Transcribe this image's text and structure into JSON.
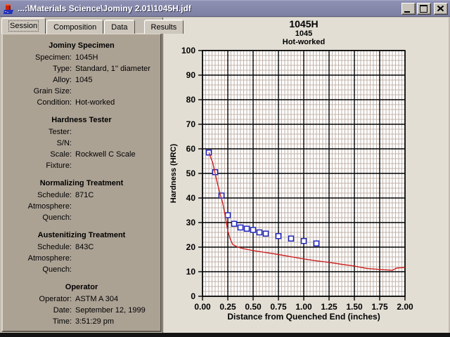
{
  "window": {
    "title": "...:\\Materials Science\\Jominy 2.01\\1045H.jdf"
  },
  "colors": {
    "titlebar": "#8789ad",
    "panel_bg": "#aca294",
    "chart_bg": "#e2ded4",
    "minor_grid": "#c0b2a8",
    "major_grid": "#000000",
    "curve_red": "#cc2020",
    "point_blue": "#2228bb"
  },
  "icons": {
    "app_icon": "furnace-cube-icon",
    "minimize": "minimize-icon",
    "maximize": "maximize-icon",
    "close": "close-icon"
  },
  "tabs": [
    {
      "label": "Session",
      "active": true
    },
    {
      "label": "Composition",
      "active": false
    },
    {
      "label": "Data",
      "active": false
    },
    {
      "label": "Results",
      "active": false
    }
  ],
  "panel": {
    "sections": [
      {
        "heading": "Jominy Specimen",
        "rows": [
          {
            "label": "Specimen:",
            "value": "1045H"
          },
          {
            "label": "Type:",
            "value": "Standard, 1'' diameter"
          },
          {
            "label": "Alloy:",
            "value": "1045"
          },
          {
            "label": "Grain Size:",
            "value": ""
          },
          {
            "label": "Condition:",
            "value": "Hot-worked"
          }
        ]
      },
      {
        "heading": "Hardness Tester",
        "rows": [
          {
            "label": "Tester:",
            "value": ""
          },
          {
            "label": "S/N:",
            "value": ""
          },
          {
            "label": "Scale:",
            "value": "Rockwell C Scale"
          },
          {
            "label": "Fixture:",
            "value": ""
          }
        ]
      },
      {
        "heading": "Normalizing Treatment",
        "rows": [
          {
            "label": "Schedule:",
            "value": "871C"
          },
          {
            "label": "Atmosphere:",
            "value": ""
          },
          {
            "label": "Quench:",
            "value": ""
          }
        ]
      },
      {
        "heading": "Austenitizing Treatment",
        "rows": [
          {
            "label": "Schedule:",
            "value": "843C"
          },
          {
            "label": "Atmosphere:",
            "value": ""
          },
          {
            "label": "Quench:",
            "value": ""
          }
        ]
      },
      {
        "heading": "Operator",
        "rows": [
          {
            "label": "Operator:",
            "value": "ASTM A 304"
          },
          {
            "label": "Date:",
            "value": "September 12, 1999"
          },
          {
            "label": "Time:",
            "value": "3:51:29 pm"
          }
        ]
      }
    ]
  },
  "chart_data": {
    "type": "scatter",
    "title": "1045H",
    "subtitle": "1045",
    "subtitle2": "Hot-worked",
    "xlabel": "Distance from Quenched End (inches)",
    "ylabel": "Hardness (HRC)",
    "xlim": [
      0,
      2
    ],
    "ylim": [
      0,
      100
    ],
    "x_major_step": 0.25,
    "x_minor_step": 0.03125,
    "y_major_step": 10,
    "y_minor_step": 2,
    "x_tick_labels": [
      "0.00",
      "0.25",
      "0.50",
      "0.75",
      "1.00",
      "1.25",
      "1.50",
      "1.75",
      "2.00"
    ],
    "y_tick_labels": [
      "0",
      "10",
      "20",
      "30",
      "40",
      "50",
      "60",
      "70",
      "80",
      "90",
      "100"
    ],
    "grid": true,
    "legend": "none",
    "series": [
      {
        "name": "measured-hardness-points",
        "type": "scatter",
        "marker": "open-square",
        "color": "#2228bb",
        "x": [
          0.0625,
          0.125,
          0.1875,
          0.25,
          0.3125,
          0.375,
          0.4375,
          0.5,
          0.5625,
          0.625,
          0.75,
          0.875,
          1.0,
          1.125
        ],
        "y": [
          58.5,
          50.5,
          41,
          33,
          29.5,
          28,
          27.5,
          27,
          26,
          25.5,
          24.5,
          23.5,
          22.5,
          21.5
        ]
      },
      {
        "name": "predicted-hardness-curve",
        "type": "line",
        "color": "#cc2020",
        "x": [
          0.0625,
          0.1,
          0.125,
          0.15,
          0.175,
          0.2,
          0.225,
          0.25,
          0.275,
          0.3,
          0.35,
          0.4,
          0.45,
          0.5,
          0.625,
          0.75,
          0.875,
          1.0,
          1.125,
          1.25,
          1.375,
          1.5,
          1.625,
          1.75,
          1.875,
          1.92,
          2.0
        ],
        "y": [
          58.5,
          54.5,
          50,
          45.5,
          41.5,
          38,
          32.5,
          26.6,
          23.2,
          21,
          20,
          19.4,
          19,
          18.6,
          17.8,
          17,
          16.1,
          15.2,
          14.4,
          13.8,
          13,
          12.3,
          11.3,
          10.9,
          10.6,
          11.5,
          11.7
        ]
      }
    ]
  }
}
